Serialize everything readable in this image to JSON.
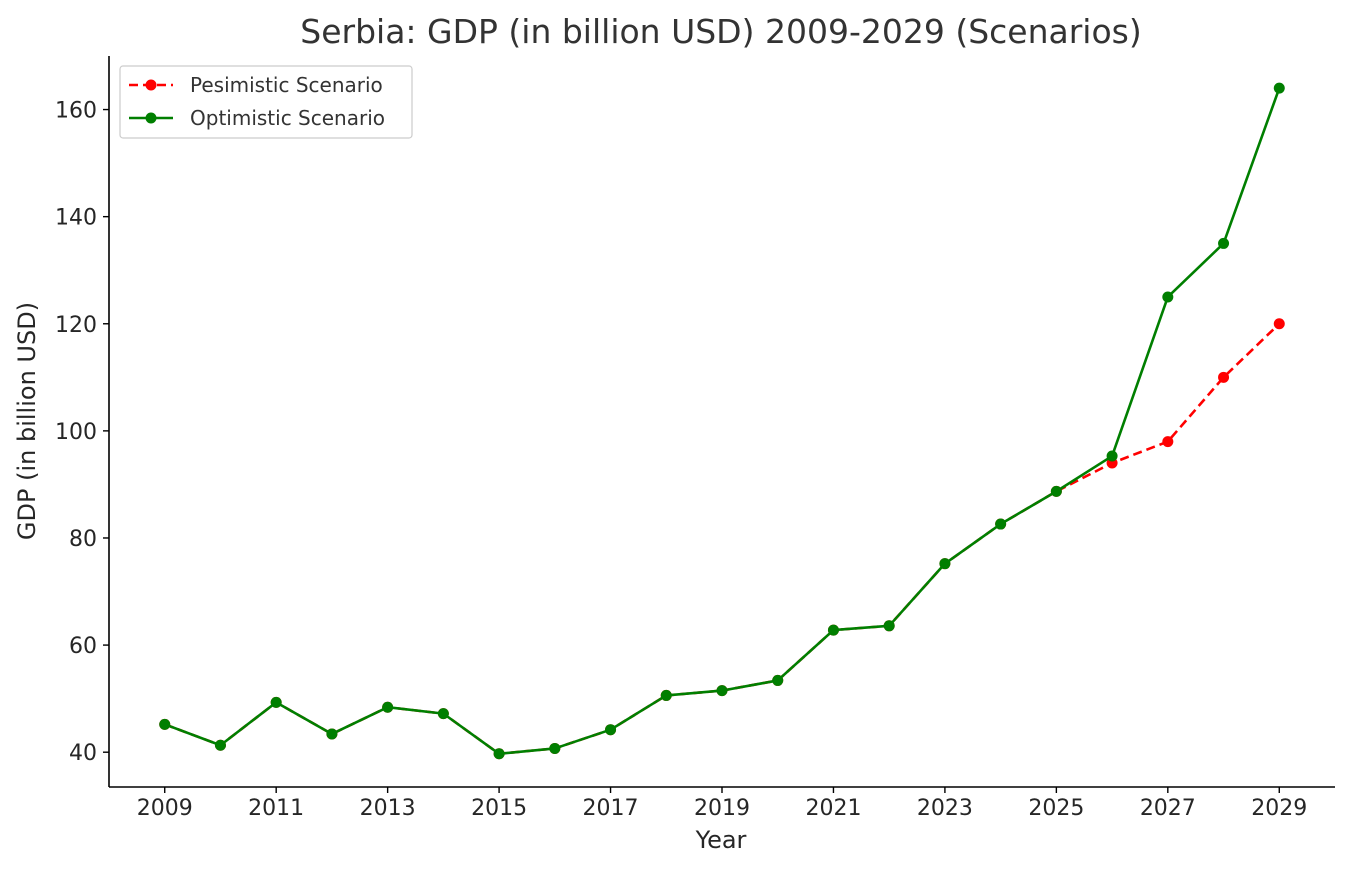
{
  "chart_data": {
    "type": "line",
    "title": "Serbia: GDP (in billion USD) 2009-2029 (Scenarios)",
    "xlabel": "Year",
    "ylabel": "GDP (in billion USD)",
    "xlim": [
      2008,
      2030
    ],
    "ylim": [
      33.5,
      170
    ],
    "x_ticks": [
      "2009",
      "2011",
      "2013",
      "2015",
      "2017",
      "2019",
      "2021",
      "2023",
      "2025",
      "2027",
      "2029"
    ],
    "y_ticks": [
      "40",
      "60",
      "80",
      "100",
      "120",
      "140",
      "160"
    ],
    "grid": false,
    "legend_position": "top-left",
    "x": [
      2009,
      2010,
      2011,
      2012,
      2013,
      2014,
      2015,
      2016,
      2017,
      2018,
      2019,
      2020,
      2021,
      2022,
      2023,
      2024,
      2025,
      2026,
      2027,
      2028,
      2029
    ],
    "series": [
      {
        "name": "Pesimistic Scenario",
        "color": "#ff0000",
        "line_style": "dashed",
        "values": [
          45.2,
          41.3,
          49.3,
          43.4,
          48.4,
          47.2,
          39.7,
          40.7,
          44.2,
          50.6,
          51.5,
          53.4,
          62.8,
          63.6,
          75.2,
          82.6,
          88.7,
          94.0,
          98.0,
          110.0,
          120.0
        ]
      },
      {
        "name": "Optimistic Scenario",
        "color": "#007f00",
        "line_style": "solid",
        "values": [
          45.2,
          41.3,
          49.3,
          43.4,
          48.4,
          47.2,
          39.7,
          40.7,
          44.2,
          50.6,
          51.5,
          53.4,
          62.8,
          63.6,
          75.2,
          82.6,
          88.7,
          95.3,
          125.0,
          135.0,
          164.0
        ]
      }
    ]
  }
}
